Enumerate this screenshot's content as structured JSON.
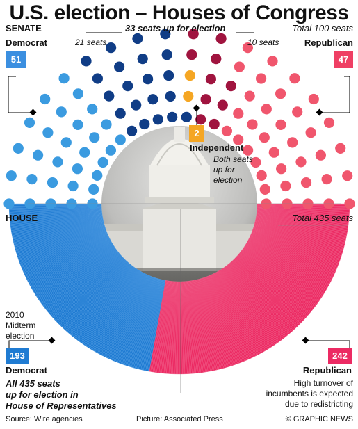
{
  "title": "U.S. election – Houses of Congress",
  "senate": {
    "label": "SENATE",
    "up_for_election": "33 seats up for election",
    "total": "Total 100 seats",
    "dem_up": "21 seats",
    "rep_up": "10 seats",
    "democrat": {
      "label": "Democrat",
      "seats": 51,
      "up_for_election": 21,
      "color": "#3b9be0",
      "up_color": "#103d86"
    },
    "republican": {
      "label": "Republican",
      "seats": 47,
      "up_for_election": 10,
      "color": "#f0566d",
      "up_color": "#a0143f"
    },
    "independent": {
      "label": "Independent",
      "seats": 2,
      "note_lines": [
        "Both seats",
        "up for",
        "election"
      ],
      "color": "#f5a623"
    }
  },
  "house": {
    "label": "HOUSE",
    "total": "Total 435 seats",
    "midterm_lines": [
      "2010",
      "Midterm",
      "election"
    ],
    "democrat": {
      "label": "Democrat",
      "seats": 193,
      "color": "#1f7bd2"
    },
    "republican": {
      "label": "Republican",
      "seats": 242,
      "color": "#ec2a63"
    },
    "all_seats_lines": [
      "All 435 seats",
      "up for election in",
      "House of Representatives"
    ],
    "turnover_lines": [
      "High turnover of",
      "incumbents is expected",
      "due to redistricting"
    ]
  },
  "footer": {
    "source": "Source: Wire agencies",
    "picture": "Picture: Associated Press",
    "credit": "© GRAPHIC NEWS"
  }
}
